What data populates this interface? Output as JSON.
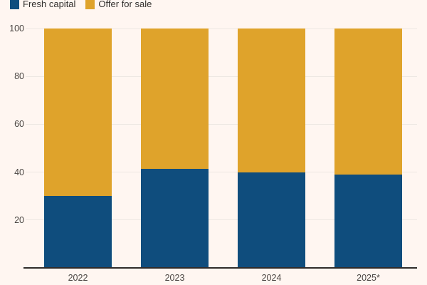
{
  "chart_data": {
    "type": "bar",
    "stacked": true,
    "title": "",
    "xlabel": "",
    "ylabel": "",
    "categories": [
      "2022",
      "2023",
      "2024",
      "2025*"
    ],
    "series": [
      {
        "name": "Fresh capital",
        "color": "#0F4D7D",
        "values": [
          30,
          41.5,
          40,
          39
        ]
      },
      {
        "name": "Offer for sale",
        "color": "#DFA32B",
        "values": [
          70,
          58.5,
          60,
          61
        ]
      }
    ],
    "ylim": [
      0,
      100
    ],
    "yticks": [
      20,
      40,
      60,
      80,
      100
    ],
    "grid": true,
    "legend_position": "top-left"
  },
  "legend": {
    "items": [
      {
        "label": "Fresh capital",
        "color": "#0F4D7D"
      },
      {
        "label": "Offer for sale",
        "color": "#DFA32B"
      }
    ]
  },
  "colors": {
    "background": "#FFF6F1",
    "fresh_capital": "#0F4D7D",
    "offer_for_sale": "#DFA32B",
    "gridline": "#EDE7E2",
    "axis_line": "#2F2C2A",
    "tick_text": "#4A4542",
    "legend_text": "#33302E"
  }
}
